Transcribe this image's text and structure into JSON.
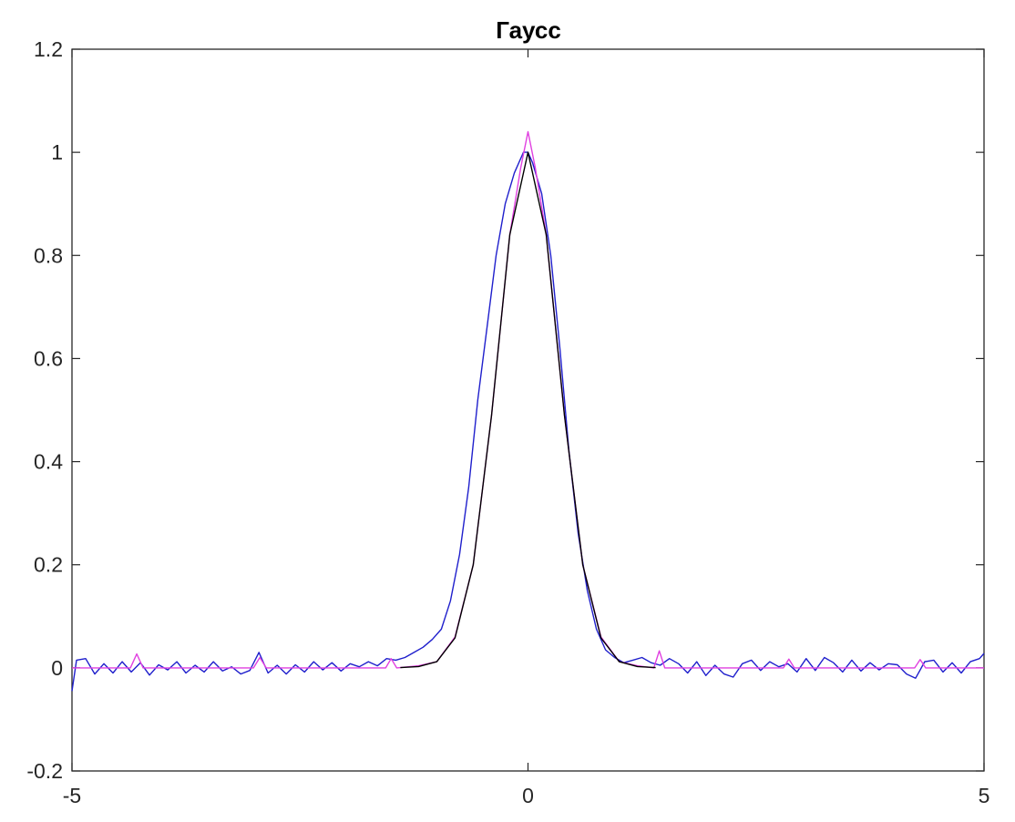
{
  "chart_data": {
    "type": "line",
    "title": "Гаусс",
    "xlabel": "",
    "ylabel": "",
    "xlim": [
      -5,
      5
    ],
    "ylim": [
      -0.2,
      1.2
    ],
    "x_ticks": [
      -5,
      0,
      5
    ],
    "x_tick_labels": [
      "-5",
      "0",
      "5"
    ],
    "y_ticks": [
      -0.2,
      0,
      0.2,
      0.4,
      0.6,
      0.8,
      1,
      1.2
    ],
    "y_tick_labels": [
      "-0.2",
      "0",
      "0.2",
      "0.4",
      "0.6",
      "0.8",
      "1",
      "1.2"
    ],
    "grid": false,
    "legend": "none",
    "series": [
      {
        "color": "#1f1fcc",
        "x": [
          -5,
          -4.95,
          -4.85,
          -4.75,
          -4.65,
          -4.55,
          -4.45,
          -4.35,
          -4.25,
          -4.15,
          -4.05,
          -3.95,
          -3.85,
          -3.75,
          -3.65,
          -3.55,
          -3.45,
          -3.35,
          -3.25,
          -3.15,
          -3.05,
          -2.95,
          -2.85,
          -2.75,
          -2.65,
          -2.55,
          -2.45,
          -2.35,
          -2.25,
          -2.15,
          -2.05,
          -1.95,
          -1.85,
          -1.75,
          -1.65,
          -1.55,
          -1.45,
          -1.35,
          -1.25,
          -1.15,
          -1.05,
          -0.95,
          -0.85,
          -0.75,
          -0.65,
          -0.55,
          -0.45,
          -0.35,
          -0.25,
          -0.15,
          -0.05,
          0,
          0.05,
          0.15,
          0.25,
          0.35,
          0.45,
          0.55,
          0.65,
          0.75,
          0.85,
          0.95,
          1.05,
          1.15,
          1.25,
          1.35,
          1.45,
          1.55,
          1.65,
          1.75,
          1.85,
          1.95,
          2.05,
          2.15,
          2.25,
          2.35,
          2.45,
          2.55,
          2.65,
          2.75,
          2.85,
          2.95,
          3.05,
          3.15,
          3.25,
          3.35,
          3.45,
          3.55,
          3.65,
          3.75,
          3.85,
          3.95,
          4.05,
          4.15,
          4.25,
          4.35,
          4.45,
          4.55,
          4.65,
          4.75,
          4.85,
          4.95,
          5
        ],
        "y": [
          -0.045,
          0.015,
          0.018,
          -0.012,
          0.008,
          -0.01,
          0.012,
          -0.008,
          0.01,
          -0.014,
          0.006,
          -0.004,
          0.012,
          -0.01,
          0.005,
          -0.008,
          0.012,
          -0.006,
          0.002,
          -0.012,
          -0.005,
          0.03,
          -0.01,
          0.005,
          -0.012,
          0.006,
          -0.008,
          0.012,
          -0.004,
          0.01,
          -0.006,
          0.008,
          0.002,
          0.012,
          0.004,
          0.018,
          0.015,
          0.02,
          0.03,
          0.04,
          0.055,
          0.075,
          0.13,
          0.22,
          0.35,
          0.52,
          0.66,
          0.8,
          0.9,
          0.96,
          1.0,
          1.0,
          0.98,
          0.92,
          0.8,
          0.62,
          0.42,
          0.26,
          0.15,
          0.075,
          0.035,
          0.02,
          0.01,
          0.015,
          0.02,
          0.01,
          0.005,
          0.018,
          0.008,
          -0.01,
          0.012,
          -0.015,
          0.005,
          -0.012,
          -0.018,
          0.008,
          0.015,
          -0.005,
          0.012,
          0.002,
          0.008,
          -0.008,
          0.018,
          -0.005,
          0.02,
          0.01,
          -0.008,
          0.015,
          -0.006,
          0.01,
          -0.004,
          0.008,
          0.006,
          -0.012,
          -0.02,
          0.012,
          0.015,
          -0.008,
          0.01,
          -0.01,
          0.012,
          0.018,
          0.028
        ]
      },
      {
        "color": "#e040e0",
        "x": [
          -5,
          -4.36,
          -4.29,
          -4.22,
          -3.01,
          -2.94,
          -2.87,
          -1.56,
          -1.5,
          -1.44,
          -1.2,
          -1,
          -0.8,
          -0.6,
          -0.4,
          -0.2,
          -0.08,
          0,
          0.08,
          0.2,
          0.4,
          0.6,
          0.8,
          1,
          1.2,
          1.38,
          1.44,
          1.5,
          2.8,
          2.86,
          2.92,
          4.24,
          4.3,
          4.36,
          5
        ],
        "y": [
          0,
          0,
          0.027,
          0,
          0,
          0.02,
          0,
          0,
          0.018,
          0,
          0.004,
          0.012,
          0.06,
          0.2,
          0.49,
          0.84,
          0.97,
          1.04,
          0.97,
          0.84,
          0.49,
          0.2,
          0.06,
          0.012,
          0.004,
          0,
          0.033,
          0,
          0,
          0.017,
          0,
          0,
          0.016,
          0,
          0
        ]
      },
      {
        "color": "#000000",
        "x": [
          -1.4,
          -1.2,
          -1,
          -0.8,
          -0.6,
          -0.4,
          -0.2,
          0,
          0.2,
          0.4,
          0.6,
          0.8,
          1,
          1.2,
          1.4
        ],
        "y": [
          0.0005,
          0.0025,
          0.012,
          0.058,
          0.2,
          0.49,
          0.84,
          1.0,
          0.84,
          0.49,
          0.2,
          0.058,
          0.012,
          0.0025,
          0.0005
        ]
      }
    ]
  }
}
